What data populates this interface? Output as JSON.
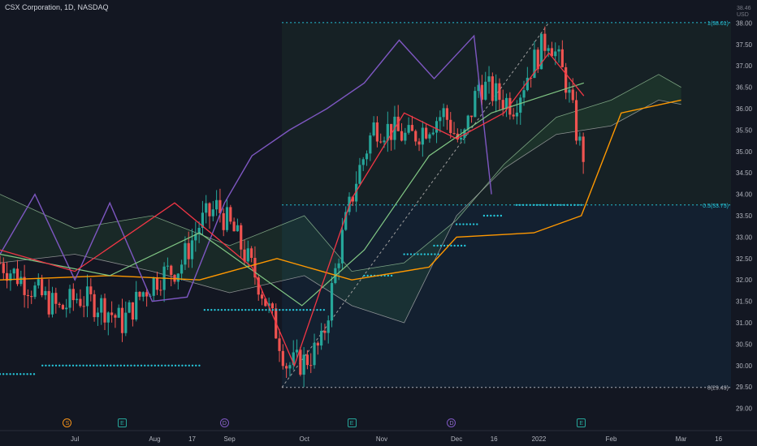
{
  "header": {
    "title": "CSX Corporation, 1D, NASDAQ",
    "currency": "USD",
    "top_price_label": "38.46"
  },
  "colors": {
    "background": "#131722",
    "candle_up": "#26a69a",
    "candle_down": "#ef5350",
    "tenkan": "#f23645",
    "kijun": "#81c784",
    "chikou": "#7e57c2",
    "lagging_orange": "#ff9800",
    "cloud_bull": "#4caf50",
    "cloud_bear": "#f44336",
    "fib_line": "#26c6da"
  },
  "events": [
    {
      "symbol": "S",
      "kind": "split",
      "date": "Jun 28"
    },
    {
      "symbol": "E",
      "kind": "earnings",
      "date": "Jul 20"
    },
    {
      "symbol": "D",
      "kind": "dividend",
      "date": "Aug 30"
    },
    {
      "symbol": "E",
      "kind": "earnings",
      "date": "Oct 20"
    },
    {
      "symbol": "D",
      "kind": "dividend",
      "date": "Nov 29"
    },
    {
      "symbol": "E",
      "kind": "earnings",
      "date": "Jan 20"
    }
  ],
  "chart_data": {
    "type": "candlestick",
    "title": "CSX Corporation, 1D, NASDAQ",
    "ylim": [
      28.5,
      38.5
    ],
    "y_ticks": [
      "38.00",
      "37.50",
      "37.00",
      "36.50",
      "36.00",
      "35.50",
      "35.00",
      "34.50",
      "34.00",
      "33.50",
      "33.00",
      "32.50",
      "32.00",
      "31.50",
      "31.00",
      "30.50",
      "30.00",
      "29.50",
      "29.00"
    ],
    "x_ticks": [
      "Jul",
      "Aug",
      "17",
      "Sep",
      "Oct",
      "Nov",
      "Dec",
      "16",
      "2022",
      "Feb",
      "Mar",
      "16"
    ],
    "x_ticks_dates": [
      "2021-07-01",
      "2021-08-02",
      "2021-08-17",
      "2021-09-01",
      "2021-10-01",
      "2021-11-01",
      "2021-12-01",
      "2021-12-16",
      "2022-01-03",
      "2022-02-01",
      "2022-03-01",
      "2022-03-16"
    ],
    "date_range": [
      "2021-06-01",
      "2022-03-21"
    ],
    "fib_levels": [
      {
        "label": "1(38.01)",
        "price": 38.01
      },
      {
        "label": "0.5(33.75)",
        "price": 33.75
      },
      {
        "label": "0(29.49)",
        "price": 29.49
      }
    ],
    "fib_start_date": "2021-09-22",
    "close_series": {
      "dates": [
        "2021-06-01",
        "2021-06-10",
        "2021-06-18",
        "2021-06-25",
        "2021-07-02",
        "2021-07-12",
        "2021-07-20",
        "2021-07-28",
        "2021-08-04",
        "2021-08-12",
        "2021-08-20",
        "2021-08-27",
        "2021-09-03",
        "2021-09-13",
        "2021-09-21",
        "2021-09-24",
        "2021-10-01",
        "2021-10-08",
        "2021-10-15",
        "2021-10-22",
        "2021-10-29",
        "2021-11-05",
        "2021-11-12",
        "2021-11-19",
        "2021-11-26",
        "2021-12-03",
        "2021-12-10",
        "2021-12-17",
        "2021-12-24",
        "2021-12-31",
        "2022-01-07",
        "2022-01-14",
        "2022-01-19",
        "2022-01-21"
      ],
      "values": [
        32.4,
        32.0,
        31.6,
        31.3,
        31.6,
        31.4,
        31.0,
        31.7,
        32.1,
        32.3,
        33.3,
        33.7,
        33.1,
        31.9,
        30.6,
        30.0,
        30.1,
        30.5,
        32.7,
        34.4,
        35.6,
        35.5,
        35.3,
        35.6,
        35.9,
        35.1,
        36.6,
        36.3,
        36.1,
        37.0,
        37.7,
        36.6,
        35.2,
        34.9
      ]
    },
    "tenkan": {
      "dates": [
        "2021-06-01",
        "2021-07-01",
        "2021-08-10",
        "2021-09-10",
        "2021-09-27",
        "2021-10-20",
        "2021-11-10",
        "2021-12-01",
        "2021-12-20",
        "2022-01-07",
        "2022-01-21"
      ],
      "values": [
        32.7,
        32.2,
        33.8,
        32.3,
        30.0,
        33.9,
        35.9,
        35.3,
        35.9,
        37.3,
        36.3
      ]
    },
    "kijun": {
      "dates": [
        "2021-06-01",
        "2021-07-15",
        "2021-08-20",
        "2021-09-30",
        "2021-10-25",
        "2021-11-20",
        "2021-12-15",
        "2022-01-05",
        "2022-01-21"
      ],
      "values": [
        32.6,
        32.1,
        33.1,
        31.4,
        32.7,
        34.9,
        35.9,
        36.3,
        36.6
      ]
    },
    "chikou": {
      "dates": [
        "2021-06-01",
        "2021-06-15",
        "2021-07-01",
        "2021-07-15",
        "2021-08-01",
        "2021-08-15",
        "2021-08-30",
        "2021-09-10",
        "2021-09-25",
        "2021-10-10",
        "2021-10-25",
        "2021-11-08",
        "2021-11-22",
        "2021-12-08",
        "2021-12-15"
      ],
      "values": [
        32.6,
        34.0,
        32.0,
        33.8,
        31.5,
        31.6,
        33.8,
        34.9,
        35.5,
        36.0,
        36.6,
        37.6,
        36.7,
        37.7,
        34.0
      ]
    },
    "lagging_orange": {
      "dates": [
        "2021-06-01",
        "2021-07-15",
        "2021-08-20",
        "2021-09-20",
        "2021-10-20",
        "2021-11-20",
        "2021-12-01",
        "2022-01-01",
        "2022-01-20",
        "2022-02-05",
        "2022-03-01"
      ],
      "values": [
        32.0,
        32.1,
        32.0,
        32.5,
        32.0,
        32.3,
        33.0,
        33.1,
        33.5,
        35.9,
        36.2
      ]
    },
    "cloud_upper": {
      "dates": [
        "2021-06-01",
        "2021-07-01",
        "2021-08-01",
        "2021-09-01",
        "2021-10-01",
        "2021-10-20",
        "2021-11-10",
        "2021-12-01",
        "2021-12-20",
        "2022-01-10",
        "2022-02-01",
        "2022-02-20",
        "2022-03-01"
      ],
      "values": [
        34.0,
        33.2,
        33.5,
        32.8,
        33.5,
        32.2,
        32.4,
        33.4,
        34.7,
        35.8,
        36.2,
        36.8,
        36.5
      ]
    },
    "cloud_lower": {
      "dates": [
        "2021-06-01",
        "2021-07-01",
        "2021-08-01",
        "2021-09-01",
        "2021-10-01",
        "2021-10-20",
        "2021-11-10",
        "2021-12-01",
        "2021-12-20",
        "2022-01-10",
        "2022-02-01",
        "2022-02-20",
        "2022-03-01"
      ],
      "values": [
        32.4,
        32.6,
        32.2,
        31.7,
        32.1,
        31.4,
        31.0,
        33.5,
        34.6,
        35.4,
        35.6,
        36.2,
        36.1
      ]
    },
    "dot_levels": [
      {
        "from": "2021-06-01",
        "to": "2021-06-15",
        "price": 29.8
      },
      {
        "from": "2021-06-18",
        "to": "2021-08-20",
        "price": 30.0
      },
      {
        "from": "2021-08-22",
        "to": "2021-10-10",
        "price": 31.3
      },
      {
        "from": "2021-10-25",
        "to": "2021-11-05",
        "price": 32.1
      },
      {
        "from": "2021-11-10",
        "to": "2021-11-25",
        "price": 32.6
      },
      {
        "from": "2021-11-22",
        "to": "2021-12-05",
        "price": 32.8
      },
      {
        "from": "2021-12-01",
        "to": "2021-12-10",
        "price": 33.3
      },
      {
        "from": "2021-12-12",
        "to": "2021-12-20",
        "price": 33.5
      },
      {
        "from": "2021-12-25",
        "to": "2022-01-20",
        "price": 33.75
      }
    ]
  }
}
